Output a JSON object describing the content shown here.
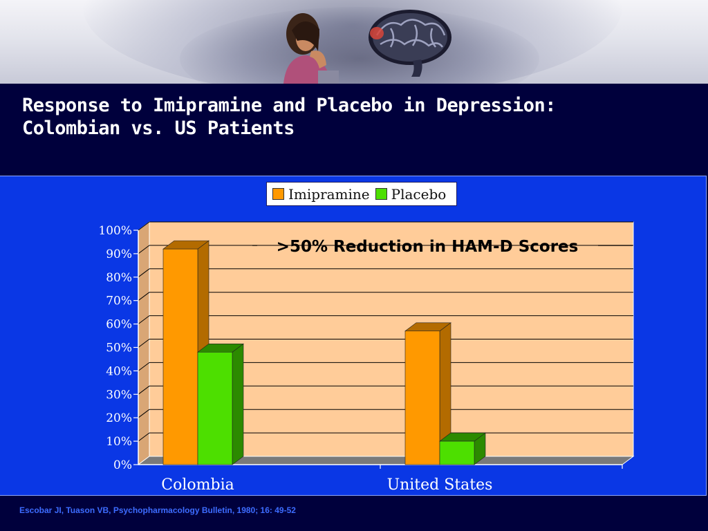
{
  "slide": {
    "title_line1": "Response to Imipramine and Placebo in Depression:",
    "title_line2": "Colombian vs. US Patients",
    "footer": "Escobar JI, Tuason VB, Psychopharmacology Bulletin, 1980; 16:  49-52",
    "icons": [
      "person-head-in-hand-icon",
      "brain-icon"
    ]
  },
  "chart_data": {
    "type": "bar",
    "title": "",
    "annotation": ">50% Reduction in HAM-D Scores",
    "categories": [
      "Colombia",
      "United States"
    ],
    "series": [
      {
        "name": "Imipramine",
        "values": [
          92,
          57
        ],
        "color": "#ff9900",
        "side_color": "#b36b00"
      },
      {
        "name": "Placebo",
        "values": [
          48,
          10
        ],
        "color": "#4ddf00",
        "side_color": "#2c8a00"
      }
    ],
    "y_ticks": [
      "0%",
      "10%",
      "20%",
      "30%",
      "40%",
      "50%",
      "60%",
      "70%",
      "80%",
      "90%",
      "100%"
    ],
    "ylim": [
      0,
      100
    ],
    "grid": true,
    "legend_position": "top-center",
    "plot_background": "#ffcc99",
    "xlabel": "",
    "ylabel": ""
  }
}
